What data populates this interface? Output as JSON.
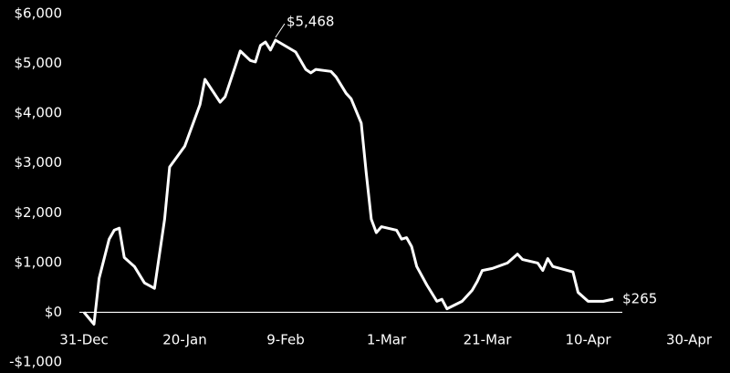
{
  "chart_data": {
    "type": "line",
    "x": [
      "31-Dec",
      "2-Jan",
      "3-Jan",
      "5-Jan",
      "6-Jan",
      "7-Jan",
      "8-Jan",
      "10-Jan",
      "12-Jan",
      "14-Jan",
      "16-Jan",
      "17-Jan",
      "20-Jan",
      "23-Jan",
      "24-Jan",
      "27-Jan",
      "28-Jan",
      "30-Jan",
      "31-Jan",
      "2-Feb",
      "3-Feb",
      "4-Feb",
      "5-Feb",
      "6-Feb",
      "7-Feb",
      "11-Feb",
      "13-Feb",
      "14-Feb",
      "15-Feb",
      "18-Feb",
      "19-Feb",
      "21-Feb",
      "22-Feb",
      "24-Feb",
      "25-Feb",
      "26-Feb",
      "27-Feb",
      "28-Feb",
      "3-Mar",
      "4-Mar",
      "5-Mar",
      "6-Mar",
      "7-Mar",
      "9-Mar",
      "11-Mar",
      "12-Mar",
      "13-Mar",
      "16-Mar",
      "18-Mar",
      "19-Mar",
      "20-Mar",
      "22-Mar",
      "25-Mar",
      "27-Mar",
      "28-Mar",
      "31-Mar",
      "1-Apr",
      "2-Apr",
      "3-Apr",
      "7-Apr",
      "8-Apr",
      "10-Apr",
      "11-Apr",
      "13-Apr",
      "15-Apr"
    ],
    "values": [
      0,
      -240,
      680,
      1470,
      1650,
      1690,
      1100,
      920,
      590,
      480,
      1870,
      2920,
      3340,
      4170,
      4680,
      4220,
      4330,
      4940,
      5250,
      5060,
      5030,
      5360,
      5430,
      5270,
      5468,
      5230,
      4880,
      4810,
      4880,
      4840,
      4730,
      4400,
      4290,
      3800,
      2790,
      1870,
      1600,
      1720,
      1650,
      1470,
      1500,
      1320,
      920,
      550,
      220,
      260,
      70,
      220,
      440,
      620,
      840,
      880,
      990,
      1170,
      1060,
      990,
      840,
      1080,
      920,
      810,
      400,
      220,
      220,
      220,
      265
    ],
    "value_labels": [
      null,
      null,
      null,
      null,
      null,
      null,
      null,
      null,
      null,
      null,
      null,
      null,
      null,
      null,
      null,
      null,
      null,
      null,
      null,
      null,
      null,
      null,
      null,
      null,
      "$5,468",
      null,
      null,
      null,
      null,
      null,
      null,
      null,
      null,
      null,
      null,
      null,
      null,
      null,
      null,
      null,
      null,
      null,
      null,
      null,
      null,
      null,
      null,
      null,
      null,
      null,
      null,
      null,
      null,
      null,
      null,
      null,
      null,
      null,
      null,
      null,
      null,
      null,
      null,
      null,
      "$265"
    ],
    "color": "#ffffff",
    "xlim": [
      "31-Dec",
      "30-Apr"
    ],
    "xticks": [
      "31-Dec",
      "20-Jan",
      "9-Feb",
      "1-Mar",
      "21-Mar",
      "10-Apr",
      "30-Apr"
    ],
    "ylim": [
      -1000,
      6000
    ],
    "yticks": [
      {
        "value": -1000,
        "label": "-$1,000"
      },
      {
        "value": 0,
        "label": "$0"
      },
      {
        "value": 1000,
        "label": "$1,000"
      },
      {
        "value": 2000,
        "label": "$2,000"
      },
      {
        "value": 3000,
        "label": "$3,000"
      },
      {
        "value": 4000,
        "label": "$4,000"
      },
      {
        "value": 5000,
        "label": "$5,000"
      },
      {
        "value": 6000,
        "label": "$6,000"
      }
    ]
  }
}
